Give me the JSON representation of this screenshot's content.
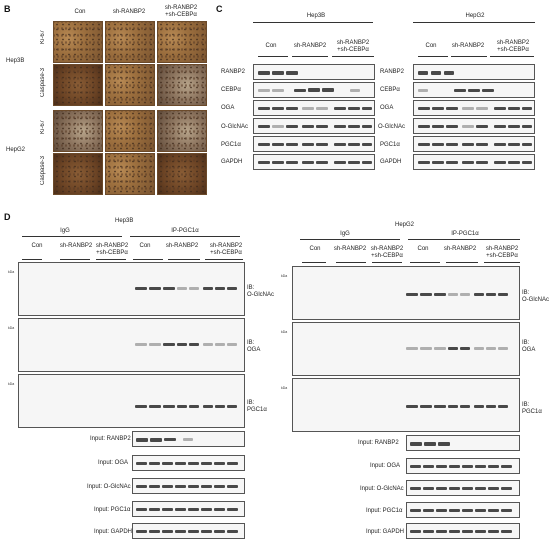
{
  "panels": {
    "B": {
      "letter": "B",
      "cols": [
        "Con",
        "sh-RANBP2",
        "sh-RANBP2\n+sh-CEBPα"
      ],
      "rows": [
        {
          "cell": "Hep3B",
          "marker": "Ki-67"
        },
        {
          "cell": "",
          "marker": "Caspase-3"
        },
        {
          "cell": "HepG2",
          "marker": "Ki-67"
        },
        {
          "cell": "",
          "marker": "Caspase-3"
        }
      ]
    },
    "C": {
      "letter": "C",
      "left": {
        "cell": "Hep3B",
        "groups": [
          "Con",
          "sh-RANBP2",
          "sh-RANBP2\n+sh-CEBPα"
        ]
      },
      "right": {
        "cell": "HepG2",
        "groups": [
          "Con",
          "sh-RANBP2",
          "sh-RANBP2\n+sh-CEBPα"
        ]
      },
      "blots": [
        "RANBP2",
        "CEBPα",
        "OGA",
        "O-GlcNAc",
        "PGC1α",
        "GAPDH"
      ]
    },
    "D": {
      "letter": "D",
      "left": {
        "cell": "Hep3B",
        "igg": "IgG",
        "ip": "IP-PGC1α",
        "groups": [
          "Con",
          "sh-RANBP2",
          "sh-RANBP2\n+sh-CEBPα"
        ],
        "ib": [
          "IB:\nO-GlcNAc",
          "IB:\nOGA",
          "IB:\nPGC1α"
        ],
        "inputs": [
          "Input: RANBP2",
          "Input: OGA",
          "Input: O-GlcNAc",
          "Input: PGC1α",
          "Input: GAPDH"
        ]
      },
      "right": {
        "cell": "HepG2",
        "igg": "IgG",
        "ip": "IP-PGC1α",
        "groups": [
          "Con",
          "sh-RANBP2",
          "sh-RANBP2\n+sh-CEBPα"
        ],
        "ib": [
          "IB:\nO-GlcNAc",
          "IB:\nOGA",
          "IB:\nPGC1α"
        ],
        "inputs": [
          "Input: RANBP2",
          "Input: OGA",
          "Input: O-GlcNAc",
          "Input: PGC1α",
          "Input: GAPDH"
        ]
      }
    }
  }
}
